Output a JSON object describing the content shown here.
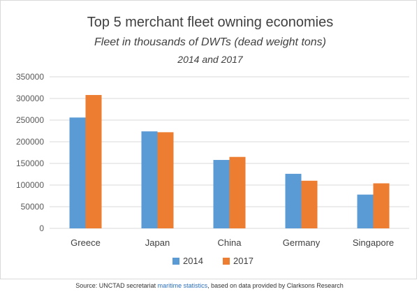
{
  "chart_data": {
    "type": "bar",
    "title": "Top 5 merchant fleet owning economies",
    "subtitle_line1": "Fleet in thousands of DWTs (dead weight tons)",
    "subtitle_line2": "2014 and 2017",
    "categories": [
      "Greece",
      "Japan",
      "China",
      "Germany",
      "Singapore"
    ],
    "series": [
      {
        "name": "2014",
        "color": "#5b9bd5",
        "values": [
          256000,
          224000,
          158000,
          126000,
          78000
        ]
      },
      {
        "name": "2017",
        "color": "#ed7d31",
        "values": [
          308000,
          222000,
          165000,
          110000,
          104000
        ]
      }
    ],
    "ylim": [
      0,
      350000
    ],
    "yticks": [
      "0",
      "50000",
      "100000",
      "150000",
      "200000",
      "250000",
      "300000",
      "350000"
    ],
    "grid": true,
    "legend_position": "bottom",
    "xlabel": "",
    "ylabel": ""
  },
  "source": {
    "prefix": "Source: UNCTAD secretariat ",
    "link": "maritime statistics",
    "suffix": ", based on data provided by Clarksons Research"
  }
}
